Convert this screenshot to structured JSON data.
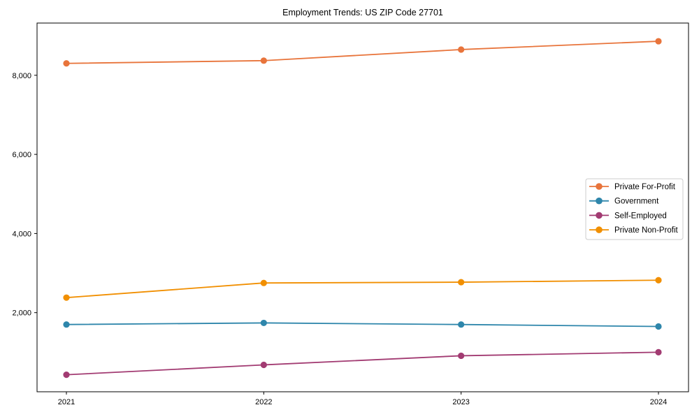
{
  "chart_data": {
    "type": "line",
    "title": "Employment Trends: US ZIP Code 27701",
    "xlabel": "",
    "ylabel": "",
    "x": [
      2021,
      2022,
      2023,
      2024
    ],
    "x_tick_labels": [
      "2021",
      "2022",
      "2023",
      "2024"
    ],
    "series": [
      {
        "name": "Private For-Profit",
        "color": "#e8743b",
        "values": [
          8300,
          8370,
          8650,
          8860
        ]
      },
      {
        "name": "Government",
        "color": "#2e86ab",
        "values": [
          1700,
          1740,
          1700,
          1650
        ]
      },
      {
        "name": "Self-Employed",
        "color": "#a23b72",
        "values": [
          430,
          680,
          910,
          1000
        ]
      },
      {
        "name": "Private Non-Profit",
        "color": "#f18f01",
        "values": [
          2380,
          2750,
          2770,
          2820
        ]
      }
    ],
    "ylim": [
      0,
      9320
    ],
    "yticks": [
      2000,
      4000,
      6000,
      8000
    ],
    "ytick_labels": [
      "2,000",
      "4,000",
      "6,000",
      "8,000"
    ],
    "legend_position": "center-right",
    "grid": false,
    "marker": "circle",
    "frame": "full-box",
    "colors": {
      "axis": "#000000",
      "legend_border": "#cccccc",
      "background": "#ffffff"
    }
  }
}
